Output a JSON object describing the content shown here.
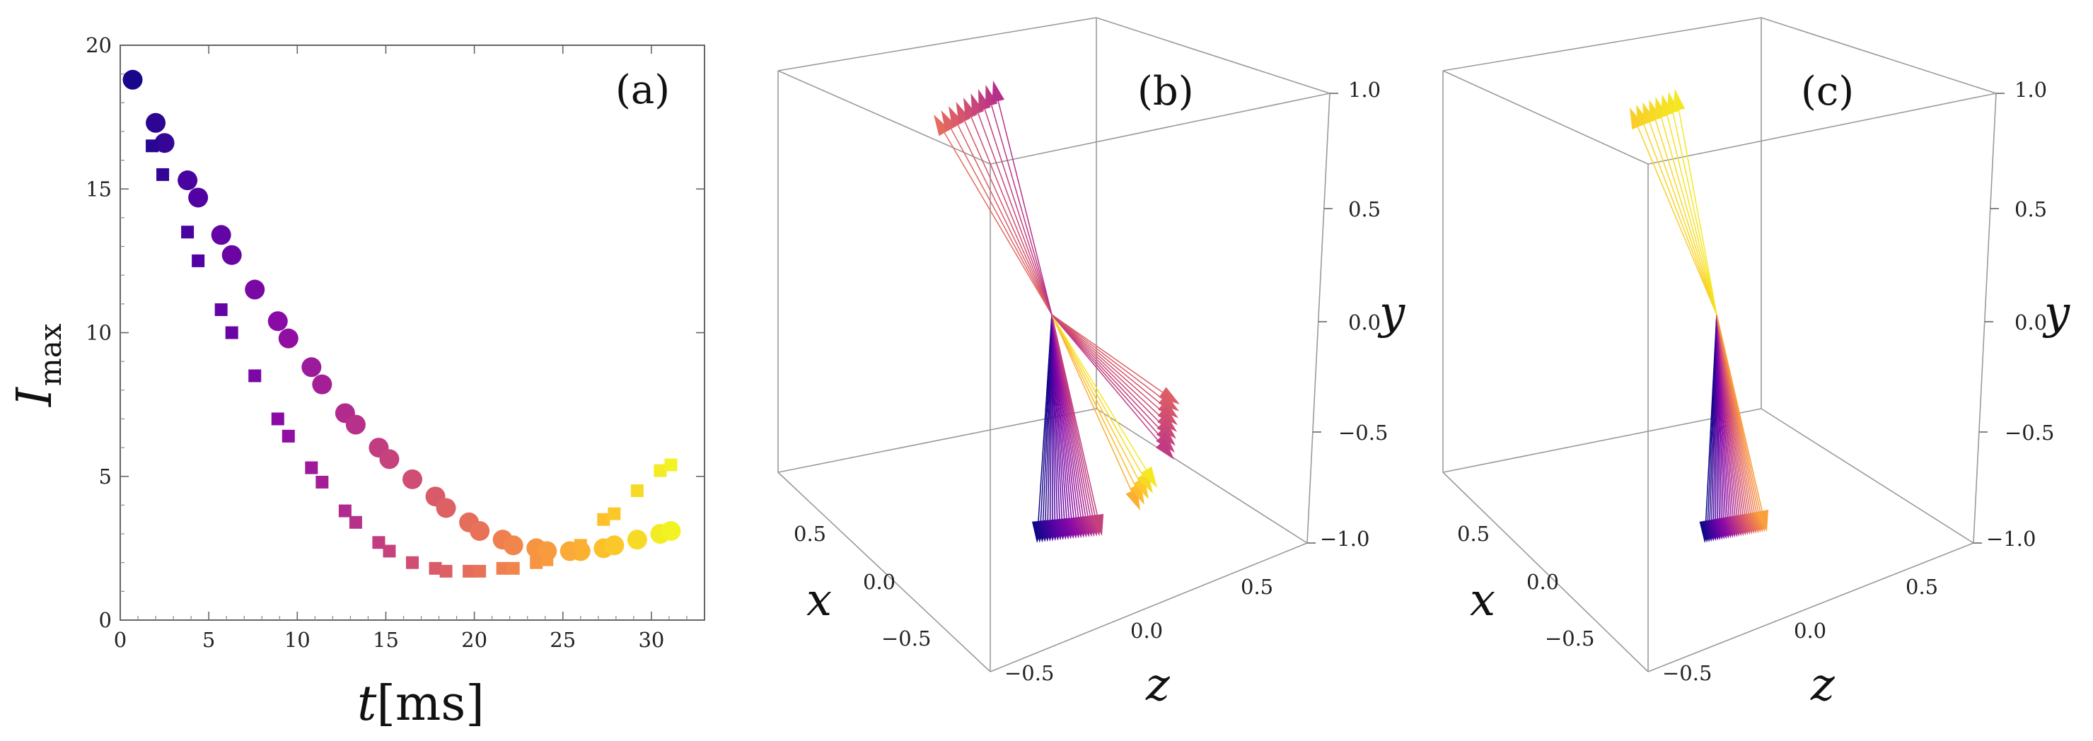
{
  "chart_data": [
    {
      "type": "scatter",
      "panel_label": "(a)",
      "xlabel": {
        "italic": "t",
        "rest": "[ms]"
      },
      "ylabel": {
        "italic": "I",
        "sub": "max"
      },
      "xlim": [
        0,
        33
      ],
      "ylim": [
        0,
        20
      ],
      "xticks": [
        0,
        5,
        10,
        15,
        20,
        25,
        30
      ],
      "yticks": [
        0,
        5,
        10,
        15,
        20
      ],
      "xtick_labels": [
        "0",
        "5",
        "10",
        "15",
        "20",
        "25",
        "30"
      ],
      "ytick_labels": [
        "0",
        "5",
        "10",
        "15",
        "20"
      ],
      "colormap": "plasma",
      "series": [
        {
          "name": "circles",
          "marker": "circle",
          "x": [
            0.7,
            2.0,
            2.5,
            3.8,
            4.4,
            5.7,
            6.3,
            7.6,
            8.9,
            9.5,
            10.8,
            11.4,
            12.7,
            13.3,
            14.6,
            15.2,
            16.5,
            17.8,
            18.4,
            19.7,
            20.3,
            21.6,
            22.2,
            23.5,
            24.1,
            25.4,
            26.0,
            27.3,
            27.9,
            29.2,
            30.5,
            31.1
          ],
          "y": [
            18.8,
            17.3,
            16.6,
            15.3,
            14.7,
            13.4,
            12.7,
            11.5,
            10.4,
            9.8,
            8.8,
            8.2,
            7.2,
            6.8,
            6.0,
            5.6,
            4.9,
            4.3,
            3.9,
            3.4,
            3.1,
            2.8,
            2.6,
            2.5,
            2.4,
            2.4,
            2.4,
            2.5,
            2.6,
            2.8,
            3.0,
            3.1
          ]
        },
        {
          "name": "squares",
          "marker": "square",
          "x": [
            0.7,
            1.8,
            2.4,
            3.8,
            4.4,
            5.7,
            6.3,
            7.6,
            8.9,
            9.5,
            10.8,
            11.4,
            12.7,
            13.3,
            14.6,
            15.2,
            16.5,
            17.8,
            18.4,
            19.7,
            20.3,
            21.6,
            22.2,
            23.5,
            24.1,
            25.4,
            26.0,
            27.3,
            27.9,
            29.2,
            30.5,
            31.1
          ],
          "y": [
            18.8,
            16.5,
            15.5,
            13.5,
            12.5,
            10.8,
            10.0,
            8.5,
            7.0,
            6.4,
            5.3,
            4.8,
            3.8,
            3.4,
            2.7,
            2.4,
            2.0,
            1.8,
            1.7,
            1.7,
            1.7,
            1.8,
            1.8,
            2.0,
            2.1,
            2.4,
            2.6,
            3.5,
            3.7,
            4.5,
            5.2,
            5.4
          ]
        }
      ]
    },
    {
      "type": "3d-vectors",
      "panel_label": "(b)",
      "axis_labels": {
        "x": "x",
        "y": "y",
        "z": "z"
      },
      "y_ticks": [
        "1.0",
        "0.5",
        "0.0",
        "−0.5",
        "−1.0"
      ],
      "x_ticks": [
        "0.5",
        "0.0",
        "−0.5"
      ],
      "z_ticks": [
        "−0.5",
        "0.0",
        "0.5"
      ],
      "colormap": "plasma",
      "vector_groups": [
        {
          "name": "down-bundle",
          "count": 26
        },
        {
          "name": "up-bundle",
          "count": 9
        },
        {
          "name": "right-bundle",
          "count": 9
        },
        {
          "name": "lower-right-bundle",
          "count": 5
        }
      ]
    },
    {
      "type": "3d-vectors",
      "panel_label": "(c)",
      "axis_labels": {
        "x": "x",
        "y": "y",
        "z": "z"
      },
      "y_ticks": [
        "1.0",
        "0.5",
        "0.0",
        "−0.5",
        "−1.0"
      ],
      "x_ticks": [
        "0.5",
        "0.0",
        "−0.5"
      ],
      "z_ticks": [
        "−0.5",
        "0.0",
        "0.5"
      ],
      "colormap": "plasma",
      "vector_groups": [
        {
          "name": "down-bundle",
          "count": 30
        },
        {
          "name": "up-bundle",
          "count": 8
        }
      ]
    }
  ]
}
